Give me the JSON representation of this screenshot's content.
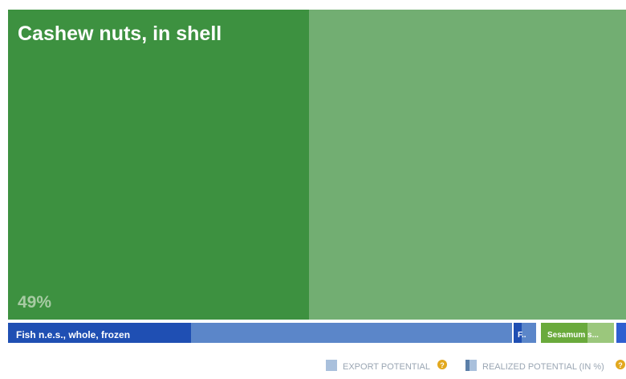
{
  "chart_data": {
    "type": "treemap",
    "items": [
      {
        "name": "Cashew nuts, in shell",
        "realized_potential_label": "49%",
        "realized_fraction": 0.49,
        "colors": {
          "realized": "#3d9140",
          "potential": "#72ae72"
        }
      },
      {
        "name": "Fish n.e.s., whole, frozen",
        "colors": {
          "realized": "#1f4fb3",
          "potential": "#5b86c9"
        }
      },
      {
        "name": "F..",
        "colors": {
          "realized": "#1f4fb3",
          "potential": "#5b86c9"
        }
      },
      {
        "name": "Sesamum s...",
        "colors": {
          "realized": "#6aaa3c",
          "potential": "#9bc77c"
        }
      },
      {
        "name": "",
        "colors": {
          "realized": "#2f5fd0",
          "potential": "#5b86c9"
        }
      }
    ]
  },
  "legend": {
    "export_potential": {
      "label": "EXPORT POTENTIAL",
      "color": "#a9c0dc",
      "info_icon": "info-icon"
    },
    "realized_potential": {
      "label": "REALIZED POTENTIAL (IN %)",
      "color": "#5b7fa8",
      "info_icon": "info-icon"
    }
  }
}
